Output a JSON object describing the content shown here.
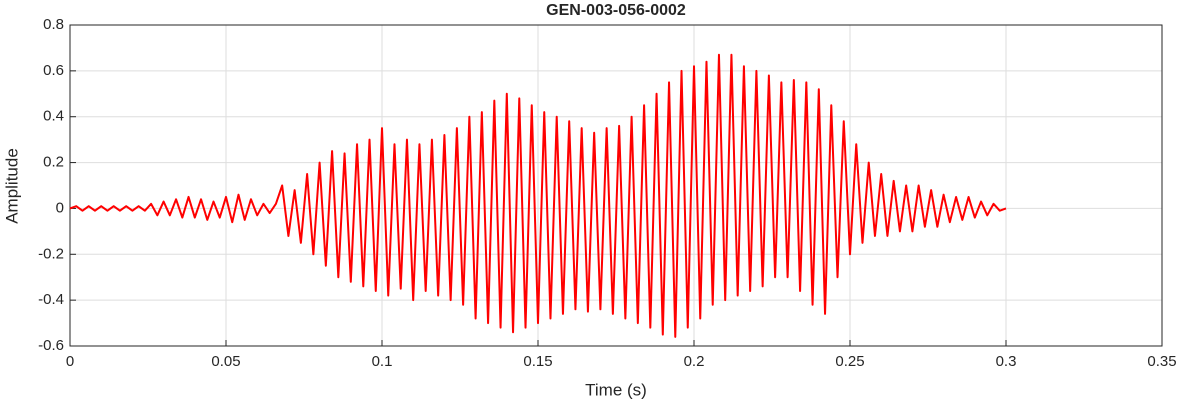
{
  "chart_data": {
    "type": "line",
    "title": "GEN-003-056-0002",
    "x_label": "Time (s)",
    "y_label": "Amplitude",
    "x": [
      0,
      0.002,
      0.004,
      0.006,
      0.008,
      0.01,
      0.012,
      0.014,
      0.016,
      0.018,
      0.02,
      0.022,
      0.024,
      0.026,
      0.028,
      0.03,
      0.032,
      0.034,
      0.036,
      0.038,
      0.04,
      0.042,
      0.044,
      0.046,
      0.048,
      0.05,
      0.052,
      0.054,
      0.056,
      0.058,
      0.06,
      0.062,
      0.064,
      0.066,
      0.068,
      0.07,
      0.072,
      0.074,
      0.076,
      0.078,
      0.08,
      0.082,
      0.084,
      0.086,
      0.088,
      0.09,
      0.092,
      0.094,
      0.096,
      0.098,
      0.1,
      0.102,
      0.104,
      0.106,
      0.108,
      0.11,
      0.112,
      0.114,
      0.116,
      0.118,
      0.12,
      0.122,
      0.124,
      0.126,
      0.128,
      0.13,
      0.132,
      0.134,
      0.136,
      0.138,
      0.14,
      0.142,
      0.144,
      0.146,
      0.148,
      0.15,
      0.152,
      0.154,
      0.156,
      0.158,
      0.16,
      0.162,
      0.164,
      0.166,
      0.168,
      0.17,
      0.172,
      0.174,
      0.176,
      0.178,
      0.18,
      0.182,
      0.184,
      0.186,
      0.188,
      0.19,
      0.192,
      0.194,
      0.196,
      0.198,
      0.2,
      0.202,
      0.204,
      0.206,
      0.208,
      0.21,
      0.212,
      0.214,
      0.216,
      0.218,
      0.22,
      0.222,
      0.224,
      0.226,
      0.228,
      0.23,
      0.232,
      0.234,
      0.236,
      0.238,
      0.24,
      0.242,
      0.244,
      0.246,
      0.248,
      0.25,
      0.252,
      0.254,
      0.256,
      0.258,
      0.26,
      0.262,
      0.264,
      0.266,
      0.268,
      0.27,
      0.272,
      0.274,
      0.276,
      0.278,
      0.28,
      0.282,
      0.284,
      0.286,
      0.288,
      0.29,
      0.292,
      0.294,
      0.296,
      0.298,
      0.3
    ],
    "series": [
      {
        "color": "#ff0000",
        "values": [
          0,
          0.01,
          -0.01,
          0.01,
          -0.01,
          0.01,
          -0.01,
          0.01,
          -0.01,
          0.01,
          -0.01,
          0.01,
          -0.01,
          0.02,
          -0.03,
          0.03,
          -0.03,
          0.04,
          -0.04,
          0.05,
          -0.04,
          0.04,
          -0.05,
          0.03,
          -0.04,
          0.05,
          -0.06,
          0.06,
          -0.05,
          0.04,
          -0.03,
          0.02,
          -0.02,
          0.02,
          0.1,
          -0.12,
          0.08,
          -0.15,
          0.15,
          -0.2,
          0.2,
          -0.25,
          0.25,
          -0.3,
          0.24,
          -0.32,
          0.28,
          -0.34,
          0.3,
          -0.36,
          0.35,
          -0.38,
          0.28,
          -0.35,
          0.3,
          -0.4,
          0.28,
          -0.36,
          0.3,
          -0.38,
          0.32,
          -0.4,
          0.35,
          -0.42,
          0.4,
          -0.48,
          0.42,
          -0.5,
          0.47,
          -0.52,
          0.5,
          -0.54,
          0.48,
          -0.52,
          0.45,
          -0.5,
          0.42,
          -0.48,
          0.4,
          -0.46,
          0.38,
          -0.44,
          0.35,
          -0.45,
          0.33,
          -0.44,
          0.35,
          -0.46,
          0.36,
          -0.48,
          0.4,
          -0.5,
          0.45,
          -0.52,
          0.5,
          -0.55,
          0.55,
          -0.56,
          0.6,
          -0.52,
          0.62,
          -0.48,
          0.64,
          -0.42,
          0.67,
          -0.4,
          0.67,
          -0.38,
          0.62,
          -0.36,
          0.6,
          -0.34,
          0.58,
          -0.3,
          0.55,
          -0.3,
          0.56,
          -0.36,
          0.55,
          -0.42,
          0.52,
          -0.46,
          0.45,
          -0.3,
          0.38,
          -0.2,
          0.28,
          -0.15,
          0.2,
          -0.12,
          0.15,
          -0.12,
          0.12,
          -0.1,
          0.1,
          -0.1,
          0.1,
          -0.08,
          0.08,
          -0.08,
          0.06,
          -0.06,
          0.05,
          -0.05,
          0.05,
          -0.04,
          0.03,
          -0.03,
          0.02,
          -0.01,
          0
        ]
      }
    ],
    "xlim": [
      0,
      0.35
    ],
    "xticks": [
      0,
      0.05,
      0.1,
      0.15,
      0.2,
      0.25,
      0.3,
      0.35
    ],
    "ylim": [
      -0.6,
      0.8
    ],
    "yticks": [
      -0.6,
      -0.4,
      -0.2,
      0,
      0.2,
      0.4,
      0.6,
      0.8
    ],
    "grid": true
  }
}
